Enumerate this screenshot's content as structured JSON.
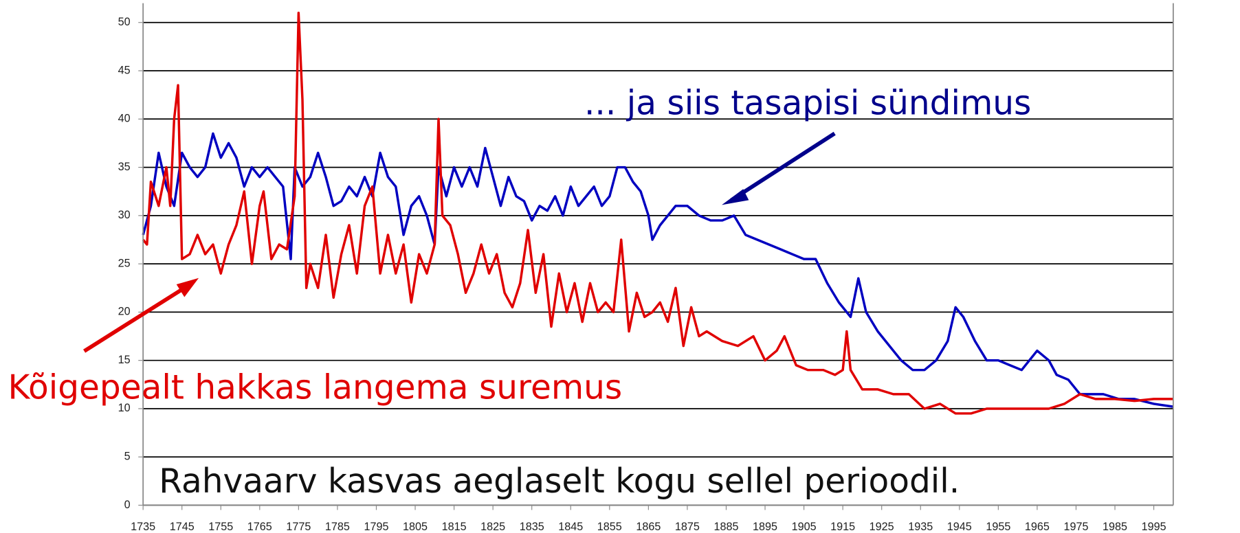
{
  "chart_data": {
    "type": "line",
    "annotations": [
      "... ja siis tasapisi sündimus",
      "Kõigepealt hakkas langema suremus",
      "Rahvaarv kasvas aeglaselt kogu sellel perioodil."
    ],
    "xlim": [
      1735,
      2000
    ],
    "ylim": [
      0,
      52
    ],
    "xticks": [
      1735,
      1745,
      1755,
      1765,
      1775,
      1785,
      1795,
      1805,
      1815,
      1825,
      1835,
      1845,
      1855,
      1865,
      1875,
      1885,
      1895,
      1905,
      1915,
      1925,
      1935,
      1945,
      1955,
      1965,
      1975,
      1985,
      1995
    ],
    "yticks": [
      0,
      5,
      10,
      15,
      20,
      25,
      30,
      35,
      40,
      45,
      50
    ],
    "grid": true,
    "series": [
      {
        "color": "#0000c0",
        "x": [
          1735,
          1737,
          1739,
          1741,
          1743,
          1745,
          1747,
          1749,
          1751,
          1753,
          1755,
          1757,
          1759,
          1761,
          1763,
          1765,
          1767,
          1769,
          1771,
          1773,
          1774,
          1776,
          1778,
          1780,
          1782,
          1784,
          1786,
          1788,
          1790,
          1792,
          1794,
          1796,
          1798,
          1800,
          1802,
          1804,
          1806,
          1808,
          1810,
          1811,
          1813,
          1815,
          1817,
          1819,
          1821,
          1823,
          1825,
          1827,
          1829,
          1831,
          1833,
          1835,
          1837,
          1839,
          1841,
          1843,
          1845,
          1847,
          1849,
          1851,
          1853,
          1855,
          1857,
          1859,
          1861,
          1863,
          1865,
          1866,
          1868,
          1870,
          1872,
          1875,
          1878,
          1881,
          1884,
          1887,
          1890,
          1893,
          1896,
          1899,
          1902,
          1905,
          1908,
          1911,
          1914,
          1917,
          1919,
          1921,
          1924,
          1927,
          1930,
          1933,
          1936,
          1939,
          1942,
          1944,
          1946,
          1949,
          1952,
          1955,
          1958,
          1961,
          1965,
          1968,
          1970,
          1973,
          1976,
          1979,
          1982,
          1986,
          1990,
          1995,
          2000
        ],
        "values": [
          28,
          31,
          36.5,
          33,
          31,
          36.5,
          35,
          34,
          35,
          38.5,
          36,
          37.5,
          36,
          33,
          35,
          34,
          35,
          34,
          33,
          25.5,
          35,
          33,
          34,
          36.5,
          34,
          31,
          31.5,
          33,
          32,
          34,
          32,
          36.5,
          34,
          33,
          28,
          31,
          32,
          30,
          27,
          35,
          32,
          35,
          33,
          35,
          33,
          37,
          34,
          31,
          34,
          32,
          31.5,
          29.5,
          31,
          30.5,
          32,
          30,
          33,
          31,
          32,
          33,
          31,
          32,
          35,
          35,
          33.5,
          32.5,
          30,
          27.5,
          29,
          30,
          31,
          31,
          30,
          29.5,
          29.5,
          30,
          28,
          27.5,
          27,
          26.5,
          26,
          25.5,
          25.5,
          23,
          21,
          19.5,
          23.5,
          20,
          18,
          16.5,
          15,
          14,
          14,
          15,
          17,
          20.5,
          19.5,
          17,
          15,
          15,
          14.5,
          14,
          16,
          15,
          13.5,
          13,
          11.5,
          11.5,
          11.5,
          11,
          11,
          10.5,
          10.2
        ]
      },
      {
        "color": "#e00000",
        "x": [
          1735,
          1736,
          1737,
          1739,
          1741,
          1742,
          1743,
          1744,
          1745,
          1747,
          1749,
          1751,
          1753,
          1755,
          1757,
          1759,
          1761,
          1763,
          1765,
          1766,
          1768,
          1770,
          1772,
          1774,
          1775,
          1776,
          1777,
          1778,
          1780,
          1782,
          1784,
          1786,
          1788,
          1790,
          1792,
          1794,
          1796,
          1798,
          1800,
          1802,
          1804,
          1806,
          1808,
          1810,
          1811,
          1812,
          1814,
          1816,
          1818,
          1820,
          1822,
          1824,
          1826,
          1828,
          1830,
          1832,
          1834,
          1836,
          1838,
          1840,
          1842,
          1844,
          1846,
          1848,
          1850,
          1852,
          1854,
          1856,
          1858,
          1860,
          1862,
          1864,
          1866,
          1868,
          1870,
          1872,
          1874,
          1876,
          1878,
          1880,
          1884,
          1888,
          1892,
          1895,
          1898,
          1900,
          1903,
          1906,
          1910,
          1913,
          1915,
          1916,
          1917,
          1920,
          1924,
          1928,
          1932,
          1936,
          1940,
          1944,
          1948,
          1952,
          1956,
          1960,
          1964,
          1968,
          1972,
          1976,
          1980,
          1985,
          1990,
          1995,
          2000
        ],
        "values": [
          27.5,
          27,
          33.5,
          31,
          35,
          31,
          40,
          43.5,
          25.5,
          26,
          28,
          26,
          27,
          24,
          27,
          29,
          32.5,
          25,
          31,
          32.5,
          25.5,
          27,
          26.5,
          32,
          51,
          42,
          22.5,
          25,
          22.5,
          28,
          21.5,
          26,
          29,
          24,
          31,
          33,
          24,
          28,
          24,
          27,
          21,
          26,
          24,
          27,
          40,
          30,
          29,
          26,
          22,
          24,
          27,
          24,
          26,
          22,
          20.5,
          23,
          28.5,
          22,
          26,
          18.5,
          24,
          20,
          23,
          19,
          23,
          20,
          21,
          20,
          27.5,
          18,
          22,
          19.5,
          20,
          21,
          19,
          22.5,
          16.5,
          20.5,
          17.5,
          18,
          17,
          16.5,
          17.5,
          15,
          16,
          17.5,
          14.5,
          14,
          14,
          13.5,
          14,
          18,
          14,
          12,
          12,
          11.5,
          11.5,
          10,
          10.5,
          9.5,
          9.5,
          10,
          10,
          10,
          10,
          10,
          10.5,
          11.5,
          11,
          11,
          10.8,
          11,
          11
        ]
      }
    ]
  }
}
